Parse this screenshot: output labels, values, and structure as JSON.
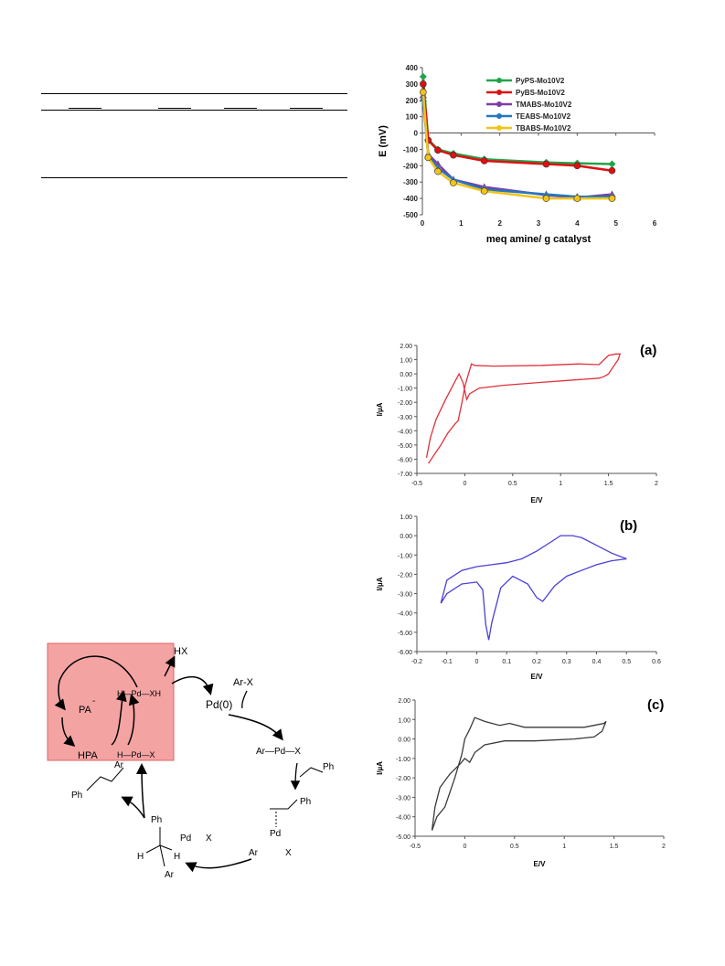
{
  "table_fragment": {
    "cells": [
      "",
      "",
      "",
      ""
    ]
  },
  "charts": [
    {
      "type": "line",
      "ylabel": "E (mV)",
      "xlabel": "meq amine/ g catalyst",
      "xlim": [
        0,
        6
      ],
      "ylim": [
        -500,
        400
      ],
      "xticks": [
        "0",
        "1",
        "2",
        "3",
        "4",
        "5",
        "6"
      ],
      "yticks": [
        "400",
        "300",
        "200",
        "100",
        "0",
        "-100",
        "-200",
        "-300",
        "-400",
        "-500"
      ],
      "legend_position": "top-right",
      "series": [
        {
          "name": "PyPS-Mo10V2",
          "color": "#22a34a",
          "marker": "diamond",
          "x": [
            0.02,
            0.15,
            0.4,
            0.8,
            1.6,
            3.2,
            4.0,
            4.9
          ],
          "y": [
            345,
            -40,
            -100,
            -125,
            -160,
            -180,
            -185,
            -190
          ]
        },
        {
          "name": "PyBS-Mo10V2",
          "color": "#e01010",
          "marker": "circle",
          "x": [
            0.02,
            0.15,
            0.4,
            0.8,
            1.6,
            3.2,
            4.0,
            4.9
          ],
          "y": [
            300,
            -45,
            -105,
            -135,
            -170,
            -190,
            -200,
            -230
          ]
        },
        {
          "name": "TMABS-Mo10V2",
          "color": "#7a3fa6",
          "marker": "triangle",
          "x": [
            0.02,
            0.15,
            0.4,
            0.8,
            1.6,
            3.2,
            4.0,
            4.9
          ],
          "y": [
            230,
            -130,
            -190,
            -285,
            -330,
            -380,
            -395,
            -375
          ]
        },
        {
          "name": "TEABS-Mo10V2",
          "color": "#2478c0",
          "marker": "triangle",
          "x": [
            0.02,
            0.15,
            0.4,
            0.8,
            1.6,
            3.2,
            4.0,
            4.9
          ],
          "y": [
            210,
            -140,
            -215,
            -285,
            -345,
            -375,
            -390,
            -390
          ]
        },
        {
          "name": "TBABS-Mo10V2",
          "color": "#f2c417",
          "marker": "circle",
          "x": [
            0.02,
            0.15,
            0.4,
            0.8,
            1.6,
            3.2,
            4.0,
            4.9
          ],
          "y": [
            250,
            -150,
            -235,
            -305,
            -355,
            -400,
            -400,
            -400
          ]
        }
      ]
    },
    {
      "type": "line",
      "panel": "(a)",
      "ylabel": "I/µA",
      "xlabel": "E/V",
      "xlim": [
        -0.5,
        2
      ],
      "ylim": [
        -7,
        2
      ],
      "xticks": [
        "-0.5",
        "0",
        "0.5",
        "1",
        "1.5",
        "2"
      ],
      "yticks": [
        "2.00",
        "1.00",
        "0.00",
        "-1.00",
        "-2.00",
        "-3.00",
        "-4.00",
        "-5.00",
        "-6.00",
        "-7.00"
      ],
      "series": [
        {
          "color": "#e0303a",
          "x": [
            -0.38,
            -0.33,
            -0.25,
            -0.18,
            -0.1,
            -0.07,
            -0.03,
            0.0,
            0.03,
            0.07,
            0.1,
            0.3,
            0.8,
            1.2,
            1.4,
            1.5,
            1.58,
            1.62,
            1.6,
            1.55,
            1.5,
            1.45,
            1.4,
            1.2,
            0.8,
            0.4,
            0.15,
            0.05,
            0.02,
            -0.02,
            -0.06,
            -0.1,
            -0.2,
            -0.3,
            -0.36,
            -0.4
          ],
          "y": [
            -6.3,
            -5.8,
            -5.0,
            -4.2,
            -3.5,
            -3.3,
            -2.0,
            -0.9,
            -0.2,
            0.7,
            0.6,
            0.55,
            0.6,
            0.7,
            0.65,
            1.3,
            1.4,
            1.4,
            1.0,
            0.5,
            0.0,
            -0.2,
            -0.3,
            -0.4,
            -0.6,
            -0.8,
            -1.0,
            -1.4,
            -1.8,
            -0.6,
            0.0,
            -0.5,
            -1.8,
            -3.2,
            -4.5,
            -5.9
          ]
        }
      ]
    },
    {
      "type": "line",
      "panel": "(b)",
      "ylabel": "I/µA",
      "xlabel": "E/V",
      "xlim": [
        -0.2,
        0.6
      ],
      "ylim": [
        -6,
        1
      ],
      "xticks": [
        "-0.2",
        "-0.1",
        "0",
        "0.1",
        "0.2",
        "0.3",
        "0.4",
        "0.5",
        "0.6"
      ],
      "yticks": [
        "1.00",
        "0.00",
        "-1.00",
        "-2.00",
        "-3.00",
        "-4.00",
        "-5.00",
        "-6.00"
      ],
      "series": [
        {
          "color": "#4a3fd8",
          "x": [
            -0.12,
            -0.1,
            -0.05,
            0.0,
            0.05,
            0.1,
            0.15,
            0.2,
            0.25,
            0.28,
            0.3,
            0.32,
            0.35,
            0.4,
            0.45,
            0.5,
            0.45,
            0.4,
            0.35,
            0.3,
            0.26,
            0.24,
            0.22,
            0.2,
            0.17,
            0.12,
            0.08,
            0.05,
            0.04,
            0.03,
            0.02,
            0.0,
            -0.05,
            -0.1,
            -0.12
          ],
          "y": [
            -3.5,
            -2.3,
            -1.8,
            -1.6,
            -1.5,
            -1.4,
            -1.2,
            -0.8,
            -0.3,
            0.0,
            0.0,
            0.0,
            -0.1,
            -0.5,
            -0.9,
            -1.2,
            -1.3,
            -1.5,
            -1.8,
            -2.1,
            -2.6,
            -3.0,
            -3.4,
            -3.2,
            -2.5,
            -2.1,
            -2.7,
            -4.5,
            -5.4,
            -4.6,
            -2.8,
            -2.4,
            -2.5,
            -3.0,
            -3.5
          ]
        }
      ]
    },
    {
      "type": "line",
      "panel": "(c)",
      "ylabel": "I/µA",
      "xlabel": "E/V",
      "xlim": [
        -0.5,
        2
      ],
      "ylim": [
        -5,
        2
      ],
      "xticks": [
        "-0.5",
        "0",
        "0.5",
        "1",
        "1.5",
        "2"
      ],
      "yticks": [
        "2.00",
        "1.00",
        "0.00",
        "-1.00",
        "-2.00",
        "-3.00",
        "-4.00",
        "-5.00"
      ],
      "series": [
        {
          "color": "#3a3a3a",
          "x": [
            -0.33,
            -0.28,
            -0.2,
            -0.1,
            -0.03,
            0.0,
            0.05,
            0.1,
            0.2,
            0.35,
            0.45,
            0.6,
            1.0,
            1.2,
            1.3,
            1.4,
            1.42,
            1.38,
            1.3,
            1.1,
            0.7,
            0.4,
            0.2,
            0.1,
            0.05,
            0.0,
            -0.05,
            -0.15,
            -0.25,
            -0.3,
            -0.33
          ],
          "y": [
            -4.7,
            -4.0,
            -3.5,
            -2.0,
            -0.8,
            0.0,
            0.5,
            1.1,
            0.9,
            0.7,
            0.8,
            0.6,
            0.6,
            0.6,
            0.7,
            0.8,
            0.9,
            0.4,
            0.1,
            0.0,
            -0.1,
            -0.1,
            -0.3,
            -0.7,
            -1.2,
            -1.0,
            -1.3,
            -1.8,
            -2.5,
            -3.5,
            -4.7
          ]
        }
      ]
    }
  ],
  "mechanism": {
    "labels": {
      "HX": "HX",
      "Pd0": "Pd(0)",
      "ArX": "Ar-X",
      "PA": "PA",
      "PA_sup": "-",
      "HPA": "HPA",
      "HPdXH": "H—Pd—XH",
      "HPdX": "H—Pd—X",
      "ArPdX": "Ar—Pd—X",
      "Ph": "Ph",
      "Ar": "Ar",
      "Pd": "Pd",
      "X": "X",
      "H": "H"
    },
    "highlight_color": "#f4a3a3"
  }
}
